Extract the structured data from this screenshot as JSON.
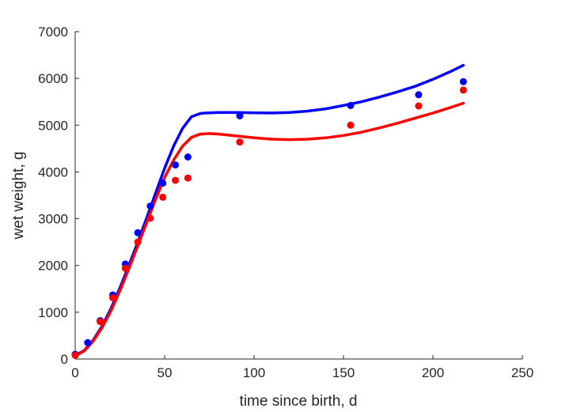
{
  "chart_data": {
    "type": "scatter",
    "xlabel": "time since birth, d",
    "ylabel": "wet weight, g",
    "xlim": [
      0,
      250
    ],
    "ylim": [
      0,
      7000
    ],
    "xticks": [
      "0",
      "50",
      "100",
      "150",
      "200",
      "250"
    ],
    "yticks": [
      "0",
      "1000",
      "2000",
      "3000",
      "4000",
      "5000",
      "6000",
      "7000"
    ],
    "grid": false,
    "series": [
      {
        "color": "#0000ff",
        "marker": "dot",
        "x": [
          0,
          7,
          14,
          21,
          28,
          35,
          42,
          49,
          56,
          63,
          92,
          154,
          192,
          217
        ],
        "y": [
          100,
          350,
          820,
          1370,
          2030,
          2700,
          3270,
          3760,
          4150,
          4320,
          5200,
          5420,
          5650,
          5930
        ]
      },
      {
        "color": "#ff0000",
        "marker": "dot",
        "x": [
          0,
          14,
          21,
          28,
          35,
          42,
          49,
          56,
          63,
          92,
          154,
          192,
          217
        ],
        "y": [
          80,
          800,
          1310,
          1940,
          2500,
          3010,
          3460,
          3820,
          3870,
          4640,
          5000,
          5410,
          5750
        ]
      },
      {
        "color": "#0000ff",
        "marker": "line",
        "x": [
          0,
          5,
          10,
          15,
          20,
          25,
          30,
          35,
          40,
          45,
          50,
          55,
          60,
          65,
          70,
          73,
          76,
          80,
          90,
          100,
          110,
          120,
          130,
          140,
          150,
          160,
          170,
          180,
          190,
          200,
          210,
          217
        ],
        "y": [
          80,
          180,
          400,
          700,
          1080,
          1520,
          2000,
          2500,
          3020,
          3550,
          4080,
          4550,
          4930,
          5180,
          5250,
          5260,
          5265,
          5270,
          5270,
          5265,
          5260,
          5270,
          5300,
          5350,
          5420,
          5500,
          5600,
          5710,
          5830,
          5980,
          6150,
          6280
        ]
      },
      {
        "color": "#ff0000",
        "marker": "line",
        "x": [
          0,
          5,
          10,
          15,
          20,
          25,
          30,
          35,
          40,
          45,
          50,
          55,
          60,
          65,
          70,
          75,
          80,
          90,
          100,
          110,
          120,
          130,
          140,
          150,
          160,
          170,
          180,
          190,
          200,
          210,
          217
        ],
        "y": [
          70,
          170,
          380,
          670,
          1030,
          1460,
          1930,
          2420,
          2920,
          3420,
          3880,
          4250,
          4550,
          4740,
          4810,
          4820,
          4810,
          4770,
          4730,
          4700,
          4690,
          4700,
          4730,
          4780,
          4850,
          4940,
          5040,
          5150,
          5260,
          5380,
          5470
        ]
      }
    ]
  }
}
